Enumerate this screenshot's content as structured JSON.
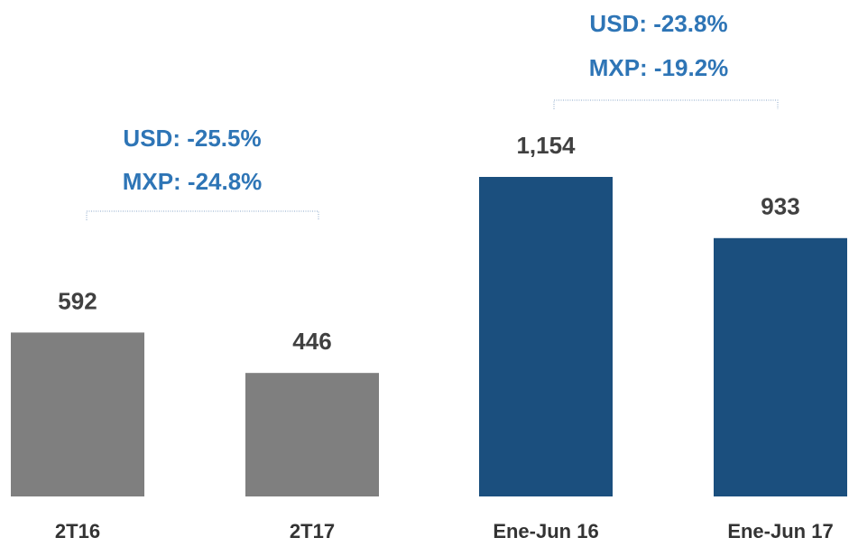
{
  "chart_data": {
    "type": "bar",
    "categories": [
      "2T16",
      "2T17",
      "Ene-Jun 16",
      "Ene-Jun 17"
    ],
    "values": [
      592,
      446,
      1154,
      933
    ],
    "value_labels": [
      "592",
      "446",
      "1,154",
      "933"
    ],
    "colors": [
      "#7f7f7f",
      "#7f7f7f",
      "#1b4f7e",
      "#1b4f7e"
    ],
    "annotations": [
      {
        "lines": [
          "USD: -25.5%",
          "MXP: -24.8%"
        ]
      },
      {
        "lines": [
          "USD: -23.8%",
          "MXP: -19.2%"
        ]
      }
    ]
  }
}
